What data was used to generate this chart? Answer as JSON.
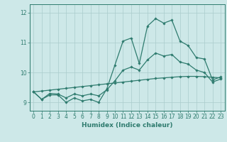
{
  "xlabel": "Humidex (Indice chaleur)",
  "bg_color": "#cde8e8",
  "grid_color": "#aacccc",
  "line_color": "#2e7b6e",
  "xlim": [
    -0.5,
    23.5
  ],
  "ylim": [
    8.72,
    12.28
  ],
  "yticks": [
    9,
    10,
    11,
    12
  ],
  "xticks": [
    0,
    1,
    2,
    3,
    4,
    5,
    6,
    7,
    8,
    9,
    10,
    11,
    12,
    13,
    14,
    15,
    16,
    17,
    18,
    19,
    20,
    21,
    22,
    23
  ],
  "line1_x": [
    0,
    1,
    2,
    3,
    4,
    5,
    6,
    7,
    8,
    9,
    10,
    11,
    12,
    13,
    14,
    15,
    16,
    17,
    18,
    19,
    20,
    21,
    22,
    23
  ],
  "line1_y": [
    9.35,
    9.1,
    9.25,
    9.25,
    9.0,
    9.15,
    9.05,
    9.1,
    9.0,
    9.45,
    10.25,
    11.05,
    11.15,
    10.3,
    11.55,
    11.8,
    11.65,
    11.75,
    11.05,
    10.9,
    10.5,
    10.45,
    9.75,
    9.85
  ],
  "line2_x": [
    0,
    1,
    2,
    3,
    4,
    5,
    6,
    7,
    8,
    9,
    10,
    11,
    12,
    13,
    14,
    15,
    16,
    17,
    18,
    19,
    20,
    21,
    22,
    23
  ],
  "line2_y": [
    9.35,
    9.1,
    9.3,
    9.28,
    9.15,
    9.28,
    9.22,
    9.28,
    9.22,
    9.42,
    9.72,
    10.08,
    10.18,
    10.08,
    10.42,
    10.65,
    10.55,
    10.6,
    10.35,
    10.28,
    10.08,
    10.0,
    9.68,
    9.78
  ],
  "line3_x": [
    0,
    1,
    2,
    3,
    4,
    5,
    6,
    7,
    8,
    9,
    10,
    11,
    12,
    13,
    14,
    15,
    16,
    17,
    18,
    19,
    20,
    21,
    22,
    23
  ],
  "line3_y": [
    9.35,
    9.38,
    9.41,
    9.44,
    9.47,
    9.5,
    9.53,
    9.56,
    9.59,
    9.62,
    9.65,
    9.68,
    9.71,
    9.74,
    9.77,
    9.8,
    9.82,
    9.84,
    9.86,
    9.87,
    9.87,
    9.86,
    9.84,
    9.82
  ]
}
